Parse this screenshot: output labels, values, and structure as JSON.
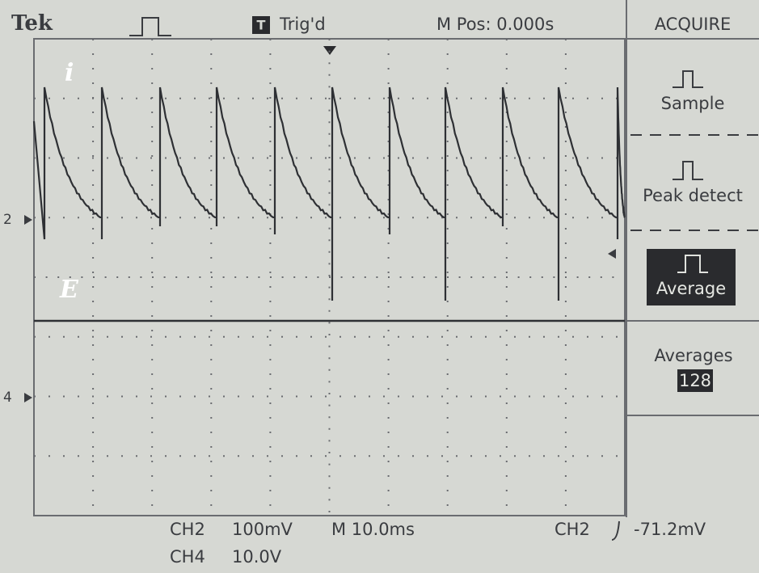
{
  "header": {
    "brand": "Tek",
    "trigger_icon": "T",
    "trigger_status": "Trig'd",
    "position": "M Pos: 0.000s"
  },
  "menu": {
    "title": "ACQUIRE",
    "items": [
      "Sample",
      "Peak detect",
      "Average"
    ],
    "averages_label": "Averages",
    "averages_value": "128"
  },
  "markers": [
    "2",
    "4"
  ],
  "trace_labels": [
    "i",
    "E"
  ],
  "footer": {
    "ch2": "CH2",
    "ch2_scale": "100mV",
    "timebase": "M 10.0ms",
    "trigger_source": "CH2",
    "trigger_level": "-71.2mV",
    "ch4": "CH4",
    "ch4_scale": "10.0V"
  }
}
